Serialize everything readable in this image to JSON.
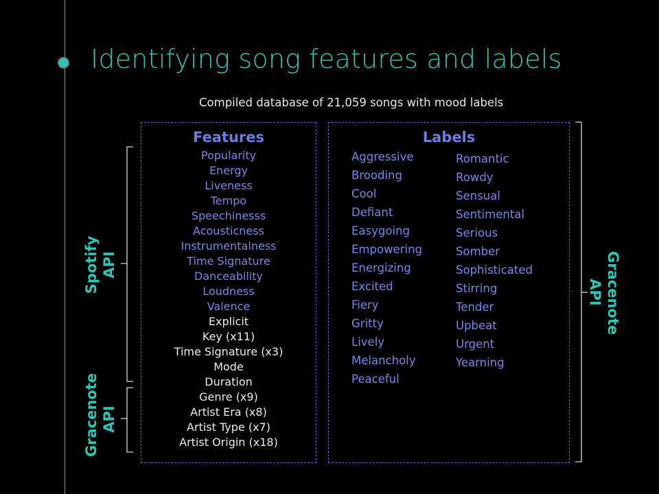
{
  "slide": {
    "title": "Identifying song features and labels",
    "subtitle": "Compiled database of 21,059 songs with mood labels"
  },
  "features": {
    "heading": "Features",
    "spotify_items": [
      "Popularity",
      "Energy",
      "Liveness",
      "Tempo",
      "Speechinesss",
      "Acousticness",
      "Instrumentalness",
      "Time Signature",
      "Danceability",
      "Loudness",
      "Valence"
    ],
    "gracenote_items": [
      "Explicit",
      "Key (x11)",
      "Time Signature (x3)",
      "Mode",
      "Duration",
      "Genre (x9)",
      "Artist Era (x8)",
      "Artist Type (x7)",
      "Artist Origin (x18)"
    ]
  },
  "labels": {
    "heading": "Labels",
    "column1": [
      "Aggressive",
      "Brooding",
      "Cool",
      "Defiant",
      "Easygoing",
      "Empowering",
      "Energizing",
      "Excited",
      "Fiery",
      "Gritty",
      "Lively",
      "Melancholy",
      "Peaceful"
    ],
    "column2": [
      "Romantic",
      "Rowdy",
      "Sensual",
      "Sentimental",
      "Serious",
      "Somber",
      "Sophisticated",
      "Stirring",
      "Tender",
      "Upbeat",
      "Urgent",
      "Yearning"
    ]
  },
  "sources": {
    "spotify": [
      "Spotify",
      "API"
    ],
    "gracenote_left": [
      "Gracenote",
      "API"
    ],
    "gracenote_right": [
      "Gracenote",
      "API"
    ]
  },
  "colors": {
    "accent": "#2ec4b6",
    "heading": "#6c7de0",
    "spotify_text": "#7b86e8",
    "gracenote_text": "#ececec",
    "box_border": "#5b63c9",
    "background": "#000000"
  }
}
